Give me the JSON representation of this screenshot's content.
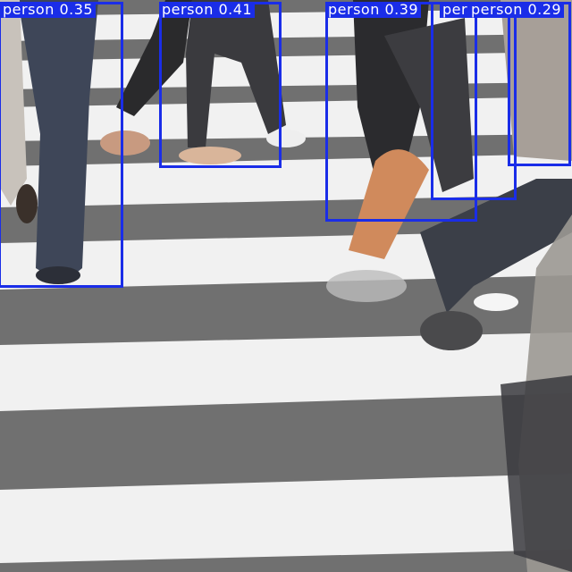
{
  "detections": [
    {
      "label": "person",
      "confidence": "0.35"
    },
    {
      "label": "person",
      "confidence": "0.41"
    },
    {
      "label": "person",
      "confidence": "0.39"
    },
    {
      "label": "person",
      "confidence": ""
    },
    {
      "label": "person",
      "confidence": "0.29"
    }
  ],
  "colors": {
    "box": "#1a2de8",
    "label_text": "#ffffff",
    "asphalt": "#6f6f6f",
    "stripe": "#f2f2f2"
  }
}
